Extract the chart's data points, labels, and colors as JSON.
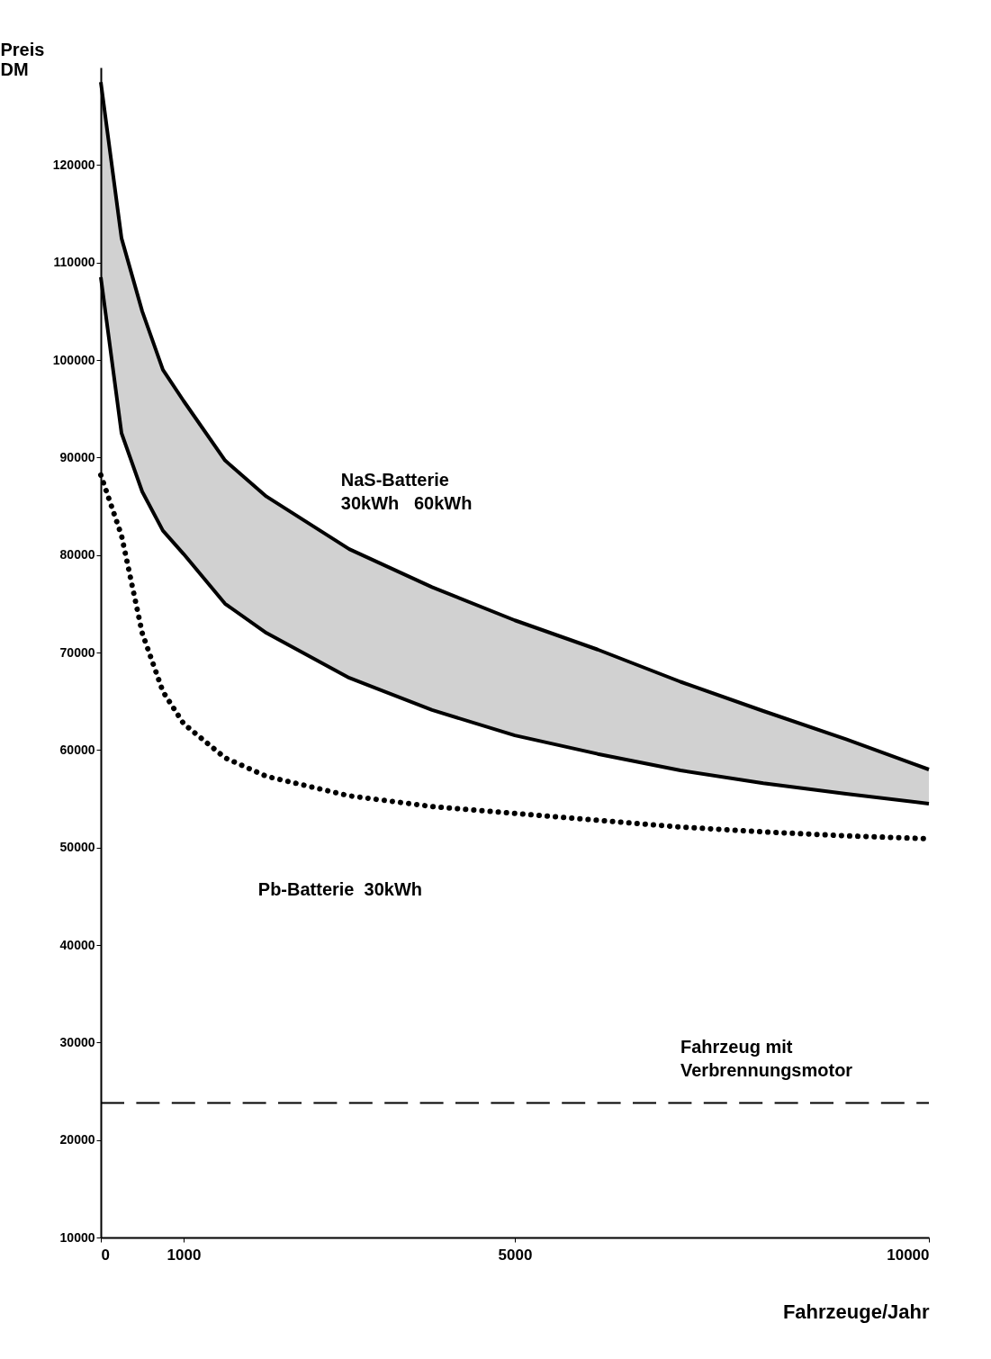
{
  "chart_data": {
    "type": "line",
    "xlabel": "Fahrzeuge/Jahr",
    "ylabel": "Preis\nDM",
    "xlim": [
      0,
      10000
    ],
    "ylim": [
      10000,
      130000
    ],
    "xticks": [
      0,
      1000,
      5000,
      10000
    ],
    "yticks": [
      10000,
      20000,
      30000,
      40000,
      50000,
      60000,
      70000,
      80000,
      90000,
      100000,
      110000,
      120000
    ],
    "grid": false,
    "marker": "none",
    "x": [
      0,
      250,
      500,
      750,
      1000,
      1500,
      2000,
      3000,
      4000,
      5000,
      6000,
      7000,
      8000,
      9000,
      10000
    ],
    "series": [
      {
        "color": "#000000",
        "line_style": "solid",
        "values": [
          128500,
          112500,
          105000,
          99000,
          95800,
          89700,
          86000,
          80600,
          76700,
          73300,
          70300,
          67000,
          64000,
          61100,
          58000
        ]
      },
      {
        "color": "#000000",
        "line_style": "solid",
        "values": [
          108500,
          92500,
          86500,
          82500,
          80100,
          75000,
          72000,
          67400,
          64100,
          61500,
          59600,
          57900,
          56600,
          55500,
          54500
        ],
        "lower": [
          108500,
          92500,
          86500,
          82500,
          80100,
          75000,
          72000,
          67400,
          64100,
          61500,
          59600,
          57900,
          56600,
          55500,
          54500
        ],
        "upper": [
          128500,
          112500,
          105000,
          99000,
          95800,
          89700,
          86000,
          80600,
          76700,
          73300,
          70300,
          67000,
          64000,
          61100,
          58000
        ]
      },
      {
        "color": "#000000",
        "line_style": "dotted",
        "values": [
          88200,
          82000,
          72000,
          66000,
          62700,
          59200,
          57300,
          55300,
          54200,
          53500,
          52800,
          52100,
          51600,
          51200,
          50900
        ]
      },
      {
        "color": "#000000",
        "line_style": "dashed",
        "x": [
          0,
          10000
        ],
        "values": [
          23800,
          23800
        ]
      }
    ],
    "annotations": [
      "NaS-Batterie\n30kWh   60kWh",
      "Pb-Batterie  30kWh",
      "Fahrzeug mit\nVerbrennungsmotor"
    ]
  }
}
